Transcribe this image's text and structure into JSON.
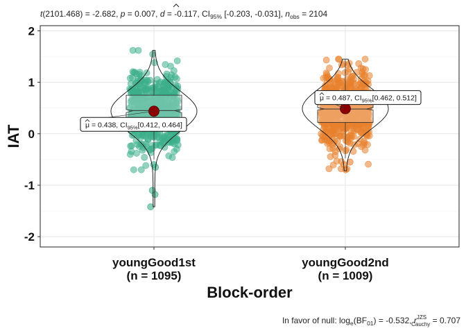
{
  "chart_data": {
    "type": "violin-box-scatter",
    "subtitle": {
      "t_label": "t",
      "df_text": "(2101.468) = -2.682, ",
      "p_label": "p",
      "p_text": " = 0.007, ",
      "d_hat": "d",
      "d_text": " = -0.117, CI",
      "ci_sub": "95%",
      "ci_text": " [-0.203, -0.031], ",
      "n_label": "n",
      "n_sub": "obs",
      "n_text": " = 2104"
    },
    "xlabel": "Block-order",
    "ylabel": "IAT",
    "ylim": [
      -2.2,
      2.1
    ],
    "yticks": [
      "2",
      "1",
      "0",
      "-1",
      "-2"
    ],
    "ytick_values": [
      2,
      1,
      0,
      -1,
      -2
    ],
    "grid": true,
    "groups": [
      {
        "name": "youngGood1st",
        "n_label": "(n = 1095)",
        "color": "#3daf8b",
        "mean": 0.438,
        "box": {
          "q1": 0.25,
          "median": 0.45,
          "q3": 0.75,
          "notch_low": 0.41,
          "notch_high": 0.47
        },
        "whisker_low": -0.5,
        "whisker_high": 1.6,
        "ymin": -1.42,
        "ymax": 1.62,
        "outliers": [
          -1.1,
          -1.18,
          -1.42,
          -0.6,
          -0.65
        ],
        "mean_label_pre": "= 0.438, CI",
        "mean_label_sub": "95%",
        "mean_label_post": "[0.412, 0.464]"
      },
      {
        "name": "youngGood2nd",
        "n_label": "(n = 1009)",
        "color": "#e8812e",
        "mean": 0.487,
        "box": {
          "q1": 0.22,
          "median": 0.48,
          "q3": 0.72,
          "notch_low": 0.46,
          "notch_high": 0.51
        },
        "whisker_low": -0.48,
        "whisker_high": 1.45,
        "ymin": -0.72,
        "ymax": 1.45,
        "outliers": [
          -0.6,
          -0.55,
          -0.7
        ],
        "mean_label_pre": "= 0.487, CI",
        "mean_label_sub": "95%",
        "mean_label_post": "[0.462, 0.512]"
      }
    ],
    "mean_symbol": "μ",
    "mean_color": "#8b0000",
    "caption": {
      "prefix": "In favor of null: log",
      "log_sub": "e",
      "bf": "(BF",
      "bf_sub": "01",
      "mid": ") = -0.532, ",
      "r_label": "r",
      "r_sup": "JZS",
      "r_sub": "Cauchy",
      "suffix": " = 0.707"
    }
  }
}
